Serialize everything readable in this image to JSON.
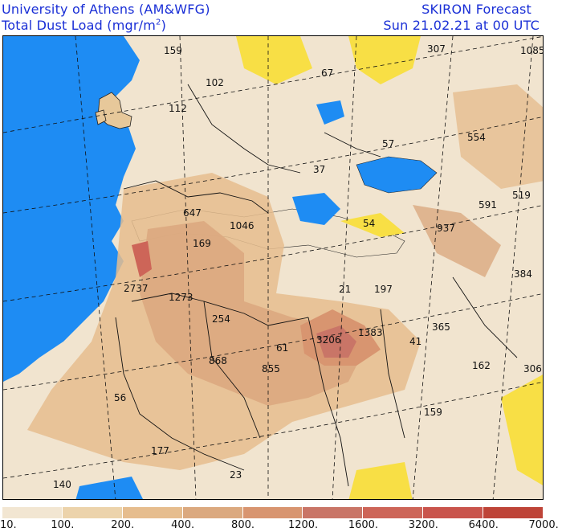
{
  "header": {
    "org": "University of Athens (AM&WFG)",
    "field": "Total Dust Load (mgr/m",
    "field_exp": "2",
    "field_close": ")",
    "product": "SKIRON Forecast",
    "valid": "Sun 21.02.21 at 00 UTC"
  },
  "map_values": [
    {
      "v": "159"
    },
    {
      "v": "102"
    },
    {
      "v": "67"
    },
    {
      "v": "307"
    },
    {
      "v": "1085"
    },
    {
      "v": "112"
    },
    {
      "v": "57"
    },
    {
      "v": "554"
    },
    {
      "v": "37"
    },
    {
      "v": "519"
    },
    {
      "v": "591"
    },
    {
      "v": "647"
    },
    {
      "v": "1046"
    },
    {
      "v": "54"
    },
    {
      "v": "937"
    },
    {
      "v": "169"
    },
    {
      "v": "384"
    },
    {
      "v": "2737"
    },
    {
      "v": "21"
    },
    {
      "v": "197"
    },
    {
      "v": "1273"
    },
    {
      "v": "254"
    },
    {
      "v": "365"
    },
    {
      "v": "1383"
    },
    {
      "v": "3206"
    },
    {
      "v": "41"
    },
    {
      "v": "61"
    },
    {
      "v": "868"
    },
    {
      "v": "855"
    },
    {
      "v": "162"
    },
    {
      "v": "306"
    },
    {
      "v": "56"
    },
    {
      "v": "159"
    },
    {
      "v": "177"
    },
    {
      "v": "23"
    },
    {
      "v": "140"
    }
  ],
  "legend": {
    "colors": [
      "#f2e6d2",
      "#ecd3ab",
      "#e6bd8e",
      "#dba97f",
      "#d89570",
      "#c97567",
      "#cd6558",
      "#c9544c",
      "#be4438"
    ],
    "labels": [
      "10.",
      "100.",
      "200.",
      "400.",
      "800.",
      "1200.",
      "1600.",
      "3200.",
      "6400.",
      "7000."
    ]
  }
}
